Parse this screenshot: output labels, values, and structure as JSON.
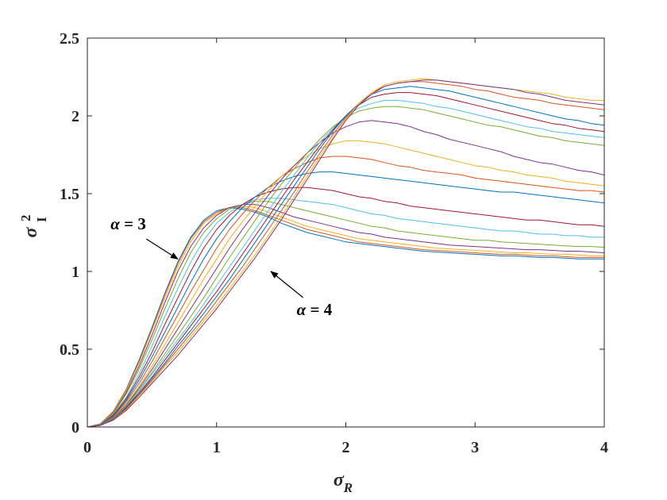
{
  "chart_data": {
    "type": "line",
    "xlabel": {
      "symbol": "σ",
      "subscript": "R"
    },
    "ylabel": {
      "symbol": "σ",
      "superscript": "2",
      "subscript": "I"
    },
    "xlim": [
      0,
      4
    ],
    "ylim": [
      0,
      2.5
    ],
    "xticks": [
      "0",
      "1",
      "2",
      "3",
      "4"
    ],
    "yticks": [
      "0",
      "0.5",
      "1",
      "1.5",
      "2",
      "2.5"
    ],
    "grid": false,
    "legend": "none",
    "annotations": [
      {
        "greek": "α",
        "text": " = 3",
        "x": 0.18,
        "y": 1.27,
        "arrow_to": [
          0.7,
          1.08
        ]
      },
      {
        "greek": "α",
        "text": " = 4",
        "x": 1.62,
        "y": 0.72,
        "arrow_to": [
          1.42,
          1.0
        ]
      }
    ],
    "series_colors": [
      "#0072BD",
      "#D95319",
      "#EDB120",
      "#7E2F8E",
      "#77AC30",
      "#4DBEEE",
      "#A2142F"
    ],
    "x": [
      0,
      0.1,
      0.2,
      0.3,
      0.4,
      0.5,
      0.6,
      0.7,
      0.8,
      0.9,
      1.0,
      1.1,
      1.2,
      1.3,
      1.4,
      1.5,
      1.6,
      1.7,
      1.8,
      1.9,
      2.0,
      2.1,
      2.2,
      2.3,
      2.4,
      2.5,
      2.6,
      2.7,
      2.8,
      2.9,
      3.0,
      3.1,
      3.2,
      3.3,
      3.4,
      3.5,
      3.6,
      3.7,
      3.8,
      3.9,
      4.0
    ],
    "series": [
      {
        "values": [
          0,
          0.02,
          0.1,
          0.24,
          0.43,
          0.64,
          0.86,
          1.06,
          1.22,
          1.33,
          1.39,
          1.41,
          1.4,
          1.38,
          1.35,
          1.31,
          1.28,
          1.25,
          1.23,
          1.21,
          1.19,
          1.18,
          1.17,
          1.16,
          1.15,
          1.14,
          1.13,
          1.125,
          1.12,
          1.115,
          1.11,
          1.105,
          1.1,
          1.1,
          1.095,
          1.09,
          1.09,
          1.085,
          1.08,
          1.08,
          1.08
        ]
      },
      {
        "values": [
          0,
          0.02,
          0.1,
          0.235,
          0.42,
          0.63,
          0.85,
          1.05,
          1.21,
          1.32,
          1.38,
          1.41,
          1.41,
          1.39,
          1.36,
          1.33,
          1.3,
          1.27,
          1.25,
          1.23,
          1.21,
          1.19,
          1.18,
          1.17,
          1.16,
          1.15,
          1.14,
          1.135,
          1.13,
          1.125,
          1.12,
          1.115,
          1.11,
          1.11,
          1.105,
          1.1,
          1.1,
          1.095,
          1.09,
          1.09,
          1.09
        ]
      },
      {
        "values": [
          0,
          0.02,
          0.095,
          0.23,
          0.41,
          0.62,
          0.83,
          1.03,
          1.19,
          1.31,
          1.37,
          1.41,
          1.42,
          1.41,
          1.38,
          1.35,
          1.32,
          1.29,
          1.27,
          1.25,
          1.23,
          1.21,
          1.2,
          1.19,
          1.18,
          1.17,
          1.16,
          1.15,
          1.145,
          1.14,
          1.135,
          1.13,
          1.125,
          1.12,
          1.12,
          1.115,
          1.11,
          1.11,
          1.105,
          1.1,
          1.1
        ]
      },
      {
        "values": [
          0,
          0.018,
          0.09,
          0.22,
          0.39,
          0.59,
          0.8,
          1.0,
          1.16,
          1.28,
          1.36,
          1.41,
          1.43,
          1.43,
          1.41,
          1.38,
          1.35,
          1.33,
          1.31,
          1.29,
          1.27,
          1.25,
          1.24,
          1.22,
          1.21,
          1.2,
          1.19,
          1.18,
          1.17,
          1.165,
          1.16,
          1.155,
          1.15,
          1.145,
          1.14,
          1.14,
          1.135,
          1.13,
          1.13,
          1.125,
          1.12
        ]
      },
      {
        "values": [
          0,
          0.017,
          0.085,
          0.21,
          0.37,
          0.56,
          0.76,
          0.95,
          1.12,
          1.25,
          1.34,
          1.4,
          1.43,
          1.45,
          1.45,
          1.43,
          1.41,
          1.39,
          1.37,
          1.35,
          1.33,
          1.31,
          1.29,
          1.28,
          1.26,
          1.25,
          1.24,
          1.23,
          1.22,
          1.21,
          1.2,
          1.2,
          1.19,
          1.185,
          1.18,
          1.175,
          1.17,
          1.165,
          1.16,
          1.16,
          1.155
        ]
      },
      {
        "values": [
          0,
          0.016,
          0.08,
          0.19,
          0.34,
          0.52,
          0.71,
          0.89,
          1.06,
          1.2,
          1.31,
          1.38,
          1.43,
          1.46,
          1.47,
          1.47,
          1.46,
          1.45,
          1.44,
          1.43,
          1.41,
          1.39,
          1.37,
          1.36,
          1.34,
          1.33,
          1.32,
          1.31,
          1.3,
          1.29,
          1.28,
          1.27,
          1.26,
          1.26,
          1.25,
          1.24,
          1.24,
          1.23,
          1.23,
          1.22,
          1.22
        ]
      },
      {
        "values": [
          0,
          0.015,
          0.075,
          0.18,
          0.32,
          0.48,
          0.66,
          0.83,
          1.0,
          1.15,
          1.27,
          1.36,
          1.43,
          1.48,
          1.51,
          1.53,
          1.54,
          1.54,
          1.53,
          1.52,
          1.5,
          1.48,
          1.47,
          1.45,
          1.44,
          1.42,
          1.41,
          1.4,
          1.39,
          1.38,
          1.37,
          1.36,
          1.35,
          1.34,
          1.33,
          1.33,
          1.32,
          1.31,
          1.3,
          1.3,
          1.29
        ]
      },
      {
        "values": [
          0,
          0.014,
          0.07,
          0.17,
          0.3,
          0.45,
          0.61,
          0.77,
          0.93,
          1.08,
          1.21,
          1.32,
          1.41,
          1.48,
          1.54,
          1.58,
          1.61,
          1.63,
          1.64,
          1.64,
          1.63,
          1.62,
          1.61,
          1.6,
          1.59,
          1.58,
          1.57,
          1.56,
          1.55,
          1.54,
          1.53,
          1.52,
          1.51,
          1.51,
          1.5,
          1.49,
          1.48,
          1.47,
          1.46,
          1.45,
          1.44
        ]
      },
      {
        "values": [
          0,
          0.013,
          0.065,
          0.16,
          0.28,
          0.42,
          0.57,
          0.72,
          0.87,
          1.01,
          1.15,
          1.27,
          1.37,
          1.46,
          1.54,
          1.61,
          1.66,
          1.7,
          1.73,
          1.74,
          1.74,
          1.73,
          1.72,
          1.7,
          1.68,
          1.67,
          1.65,
          1.64,
          1.63,
          1.62,
          1.6,
          1.59,
          1.58,
          1.57,
          1.56,
          1.55,
          1.54,
          1.53,
          1.52,
          1.52,
          1.51
        ]
      },
      {
        "values": [
          0,
          0.012,
          0.06,
          0.15,
          0.26,
          0.39,
          0.53,
          0.67,
          0.81,
          0.95,
          1.08,
          1.21,
          1.32,
          1.42,
          1.52,
          1.61,
          1.68,
          1.74,
          1.79,
          1.82,
          1.84,
          1.84,
          1.83,
          1.82,
          1.8,
          1.78,
          1.76,
          1.74,
          1.72,
          1.7,
          1.68,
          1.67,
          1.65,
          1.64,
          1.62,
          1.61,
          1.6,
          1.58,
          1.57,
          1.56,
          1.55
        ]
      },
      {
        "values": [
          0,
          0.012,
          0.058,
          0.14,
          0.25,
          0.37,
          0.5,
          0.63,
          0.76,
          0.89,
          1.02,
          1.15,
          1.27,
          1.38,
          1.49,
          1.59,
          1.68,
          1.76,
          1.83,
          1.89,
          1.93,
          1.96,
          1.97,
          1.96,
          1.95,
          1.93,
          1.9,
          1.88,
          1.85,
          1.83,
          1.81,
          1.79,
          1.77,
          1.74,
          1.72,
          1.7,
          1.69,
          1.67,
          1.65,
          1.64,
          1.62
        ]
      },
      {
        "values": [
          0,
          0.011,
          0.055,
          0.135,
          0.24,
          0.35,
          0.47,
          0.59,
          0.71,
          0.83,
          0.96,
          1.09,
          1.21,
          1.33,
          1.45,
          1.56,
          1.66,
          1.76,
          1.85,
          1.93,
          1.99,
          2.03,
          2.05,
          2.06,
          2.06,
          2.05,
          2.04,
          2.02,
          2.0,
          1.98,
          1.96,
          1.94,
          1.93,
          1.91,
          1.89,
          1.87,
          1.86,
          1.84,
          1.83,
          1.82,
          1.81
        ]
      },
      {
        "values": [
          0,
          0.011,
          0.052,
          0.13,
          0.23,
          0.34,
          0.45,
          0.56,
          0.67,
          0.79,
          0.91,
          1.03,
          1.15,
          1.27,
          1.39,
          1.51,
          1.62,
          1.73,
          1.83,
          1.92,
          2.0,
          2.05,
          2.08,
          2.1,
          2.1,
          2.09,
          2.08,
          2.06,
          2.05,
          2.03,
          2.01,
          1.99,
          1.97,
          1.95,
          1.93,
          1.92,
          1.9,
          1.89,
          1.88,
          1.87,
          1.86
        ]
      },
      {
        "values": [
          0,
          0.01,
          0.05,
          0.125,
          0.22,
          0.32,
          0.43,
          0.54,
          0.65,
          0.76,
          0.87,
          0.99,
          1.11,
          1.23,
          1.35,
          1.47,
          1.59,
          1.7,
          1.81,
          1.91,
          2.0,
          2.07,
          2.12,
          2.14,
          2.15,
          2.15,
          2.14,
          2.13,
          2.11,
          2.09,
          2.07,
          2.05,
          2.03,
          2.01,
          1.99,
          1.97,
          1.95,
          1.94,
          1.92,
          1.91,
          1.9
        ]
      },
      {
        "values": [
          0,
          0.01,
          0.048,
          0.12,
          0.21,
          0.31,
          0.41,
          0.52,
          0.62,
          0.73,
          0.84,
          0.95,
          1.07,
          1.19,
          1.31,
          1.43,
          1.55,
          1.67,
          1.79,
          1.9,
          2.0,
          2.08,
          2.14,
          2.17,
          2.18,
          2.19,
          2.18,
          2.17,
          2.16,
          2.14,
          2.12,
          2.1,
          2.08,
          2.06,
          2.04,
          2.02,
          2.0,
          1.98,
          1.97,
          1.95,
          1.94
        ]
      },
      {
        "values": [
          0,
          0.01,
          0.046,
          0.115,
          0.205,
          0.3,
          0.4,
          0.5,
          0.6,
          0.7,
          0.81,
          0.92,
          1.03,
          1.15,
          1.27,
          1.39,
          1.51,
          1.64,
          1.76,
          1.88,
          1.99,
          2.08,
          2.15,
          2.19,
          2.21,
          2.22,
          2.22,
          2.21,
          2.2,
          2.19,
          2.17,
          2.16,
          2.14,
          2.12,
          2.11,
          2.1,
          2.08,
          2.07,
          2.06,
          2.05,
          2.04
        ]
      },
      {
        "values": [
          0,
          0.01,
          0.045,
          0.11,
          0.2,
          0.29,
          0.39,
          0.48,
          0.58,
          0.68,
          0.78,
          0.89,
          1.0,
          1.11,
          1.23,
          1.35,
          1.48,
          1.61,
          1.74,
          1.86,
          1.98,
          2.08,
          2.15,
          2.2,
          2.22,
          2.23,
          2.24,
          2.23,
          2.22,
          2.21,
          2.2,
          2.19,
          2.18,
          2.17,
          2.16,
          2.15,
          2.14,
          2.12,
          2.11,
          2.1,
          2.1
        ]
      },
      {
        "values": [
          0,
          0.01,
          0.044,
          0.105,
          0.19,
          0.28,
          0.37,
          0.46,
          0.56,
          0.66,
          0.76,
          0.87,
          0.98,
          1.09,
          1.21,
          1.33,
          1.46,
          1.59,
          1.72,
          1.85,
          1.97,
          2.07,
          2.14,
          2.19,
          2.21,
          2.22,
          2.23,
          2.23,
          2.22,
          2.21,
          2.2,
          2.19,
          2.18,
          2.17,
          2.15,
          2.14,
          2.12,
          2.1,
          2.09,
          2.08,
          2.07
        ]
      }
    ]
  }
}
